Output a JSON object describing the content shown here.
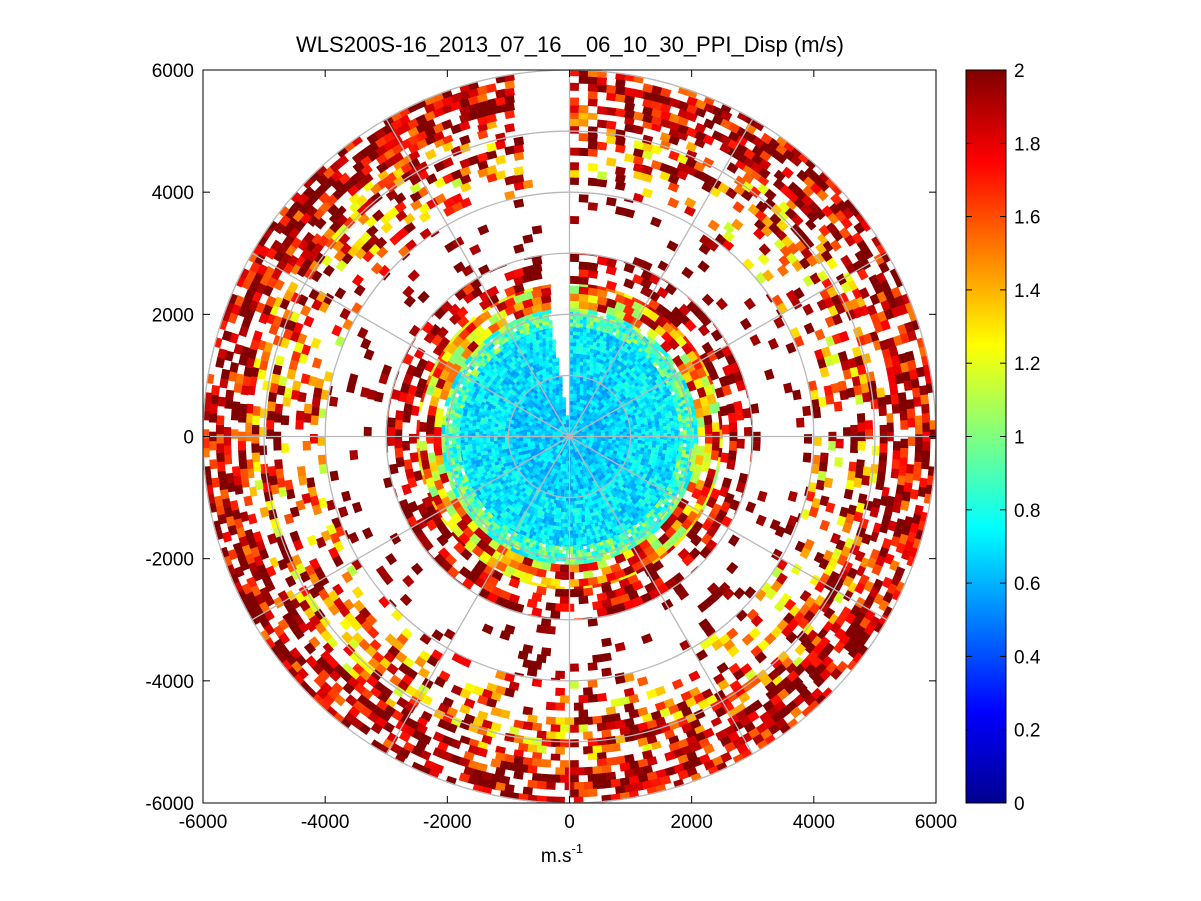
{
  "chart_data": {
    "type": "heatmap",
    "subtype": "polar-ppi-scan",
    "title": "WLS200S-16_2013_07_16__06_10_30_PPI_Disp (m/s)",
    "xlabel": "m.s",
    "xlabel_superscript": "-1",
    "ylabel": "",
    "xlim": [
      -6000,
      6000
    ],
    "ylim": [
      -6000,
      6000
    ],
    "xticks": [
      "-6000",
      "-4000",
      "-2000",
      "0",
      "2000",
      "4000",
      "6000"
    ],
    "yticks": [
      "6000",
      "4000",
      "2000",
      "0",
      "-2000",
      "-4000",
      "-6000"
    ],
    "xtick_values": [
      -6000,
      -4000,
      -2000,
      0,
      2000,
      4000,
      6000
    ],
    "ytick_values": [
      6000,
      4000,
      2000,
      0,
      -2000,
      -4000,
      -6000
    ],
    "grid": "polar",
    "polar_grid": {
      "ring_radii": [
        1000,
        2000,
        3000,
        4000,
        5000,
        6000
      ],
      "spoke_angles_deg": [
        0,
        30,
        60,
        90,
        120,
        150,
        180,
        210,
        240,
        270,
        300,
        330
      ]
    },
    "colorbar": {
      "colormap": "jet",
      "range": [
        0,
        2
      ],
      "tick_values": [
        0,
        0.2,
        0.4,
        0.6,
        0.8,
        1,
        1.2,
        1.4,
        1.6,
        1.8,
        2
      ],
      "tick_labels": [
        "0",
        "0.2",
        "0.4",
        "0.6",
        "0.8",
        "1",
        "1.2",
        "1.4",
        "1.6",
        "1.8",
        "2"
      ],
      "placement": "right"
    },
    "max_range_m": 6000,
    "gap_sector_deg": [
      350,
      360
    ],
    "radial_profile": [
      {
        "range": [
          0,
          1000
        ],
        "value": 0.65,
        "coverage": 1.0,
        "spread": 0.12
      },
      {
        "range": [
          1000,
          1800
        ],
        "value": 0.7,
        "coverage": 1.0,
        "spread": 0.15
      },
      {
        "range": [
          1800,
          2100
        ],
        "value": 0.9,
        "coverage": 0.95,
        "spread": 0.25
      },
      {
        "range": [
          2100,
          2500
        ],
        "value": 1.5,
        "coverage": 0.85,
        "spread": 0.5
      },
      {
        "range": [
          2500,
          3000
        ],
        "value": 1.9,
        "coverage": 0.55,
        "spread": 0.3
      },
      {
        "range": [
          3000,
          4000
        ],
        "value": 2.0,
        "coverage": 0.12,
        "spread": 0.1
      },
      {
        "range": [
          4000,
          4600
        ],
        "value": 1.6,
        "coverage": 0.35,
        "spread": 0.5
      },
      {
        "range": [
          4600,
          5300
        ],
        "value": 1.7,
        "coverage": 0.6,
        "spread": 0.55
      },
      {
        "range": [
          5300,
          6000
        ],
        "value": 1.85,
        "coverage": 0.7,
        "spread": 0.35
      }
    ]
  }
}
